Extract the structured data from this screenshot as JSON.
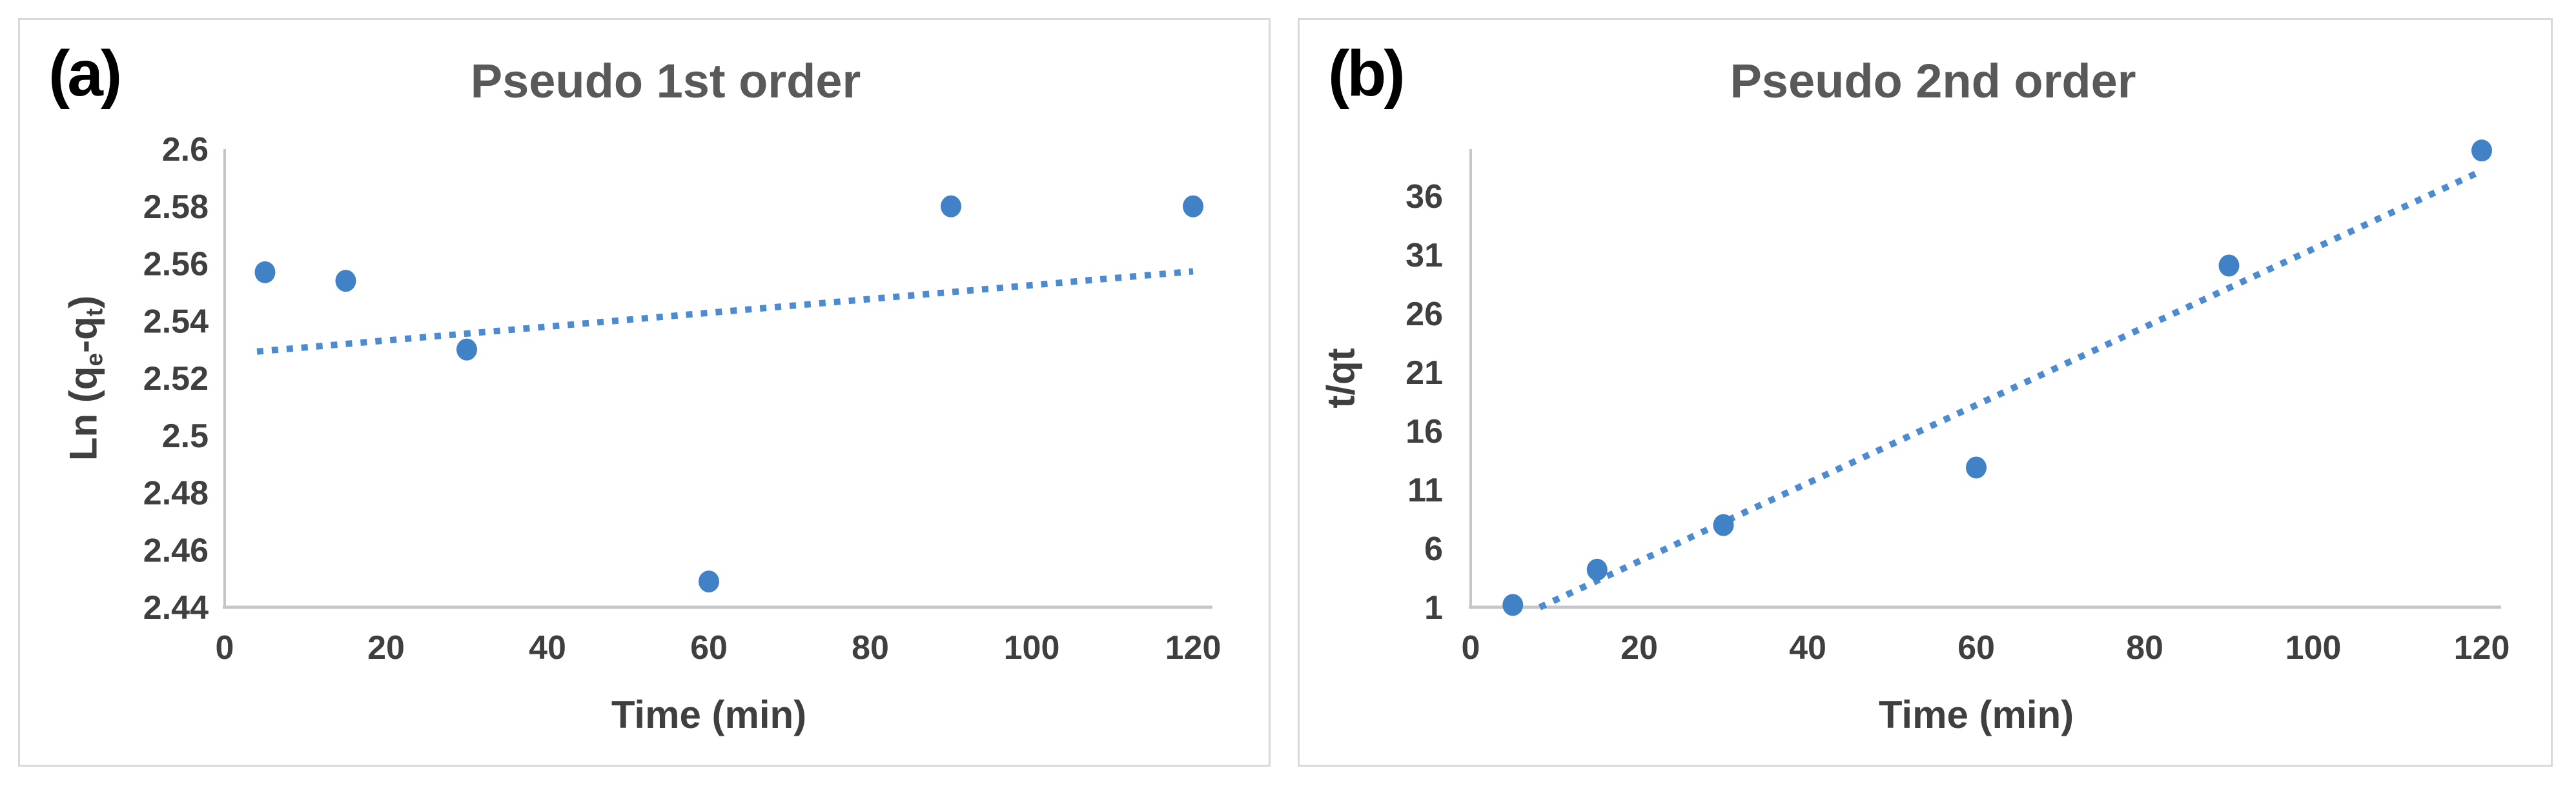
{
  "figure": {
    "background": "#ffffff",
    "panel_border_color": "#d9d9d9"
  },
  "colors": {
    "marker": "#4181c6",
    "trendline": "#4c8bd0",
    "axis_line": "#c6c6c6",
    "tick_text": "#3f3f3f",
    "title_text": "#595959",
    "corner_label_text": "#000000"
  },
  "chart_data": [
    {
      "type": "scatter",
      "panel_label": "(a)",
      "title": "Pseudo 1st order",
      "xlabel": "Time (min)",
      "ylabel": "Ln (qe-qt)",
      "ylabel_parts": [
        {
          "t": "Ln (q"
        },
        {
          "t": "e",
          "sub": true
        },
        {
          "t": "-q"
        },
        {
          "t": "t",
          "sub": true
        },
        {
          "t": ")"
        }
      ],
      "x": [
        5,
        15,
        30,
        60,
        90,
        120
      ],
      "y": [
        2.557,
        2.554,
        2.53,
        2.449,
        2.58,
        2.58
      ],
      "xticks": [
        "0",
        "20",
        "40",
        "60",
        "80",
        "100",
        "120"
      ],
      "yticks": [
        "2.6",
        "2.58",
        "2.56",
        "2.54",
        "2.52",
        "2.5",
        "2.48",
        "2.46",
        "2.44"
      ],
      "xlim": [
        0,
        120
      ],
      "ylim": [
        2.44,
        2.6
      ],
      "trend": {
        "x1": 4,
        "y1": 2.5293,
        "x2": 120,
        "y2": 2.5573
      },
      "trend_style": "dotted",
      "grid": false,
      "legend": false
    },
    {
      "type": "scatter",
      "panel_label": "(b)",
      "title": "Pseudo 2nd order",
      "xlabel": "Time (min)",
      "ylabel": "t/qt",
      "ylabel_parts": [
        {
          "t": "t/qt"
        }
      ],
      "x": [
        5,
        15,
        30,
        60,
        90,
        120
      ],
      "y": [
        1.2,
        4.2,
        8.0,
        12.9,
        30.1,
        39.9
      ],
      "xticks": [
        "0",
        "20",
        "40",
        "60",
        "80",
        "100",
        "120"
      ],
      "yticks": [
        "36",
        "31",
        "26",
        "21",
        "16",
        "11",
        "6",
        "1"
      ],
      "xlim": [
        0,
        120
      ],
      "ylim": [
        1,
        40.02
      ],
      "trend": {
        "x1": 8.2,
        "y1": 1.0,
        "x2": 119.5,
        "y2": 38.0
      },
      "trend_style": "dotted",
      "grid": false,
      "legend": false
    }
  ]
}
